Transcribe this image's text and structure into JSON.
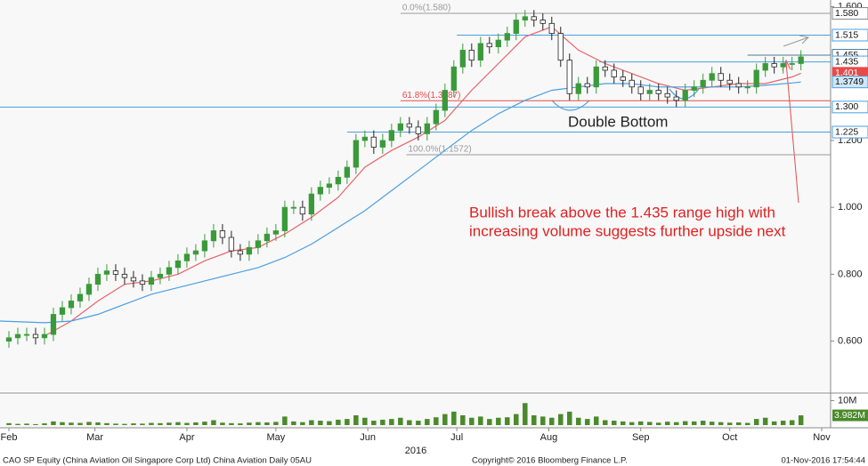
{
  "chart_data": {
    "type": "candlestick",
    "x": [
      0,
      3,
      6,
      9,
      12,
      15,
      18,
      21,
      24,
      27,
      30,
      33,
      36,
      39,
      42,
      45,
      48,
      51,
      54,
      57,
      60,
      63,
      66,
      69,
      72,
      75,
      78,
      81,
      84,
      87,
      90,
      93,
      96,
      99,
      102,
      105,
      108,
      111,
      114,
      117,
      120,
      123,
      126,
      129,
      132,
      135,
      138,
      141,
      144,
      147,
      150,
      153,
      156,
      159,
      162,
      165,
      168,
      171,
      174,
      177,
      180,
      183,
      186,
      189,
      192,
      195,
      198,
      201,
      204,
      207,
      210,
      213,
      216,
      219,
      222,
      225,
      228,
      231,
      234,
      237,
      240,
      243,
      246,
      249,
      252,
      255,
      258,
      261,
      264,
      267
    ],
    "open": [
      0.6,
      0.61,
      0.62,
      0.62,
      0.61,
      0.62,
      0.68,
      0.7,
      0.72,
      0.74,
      0.77,
      0.8,
      0.81,
      0.8,
      0.79,
      0.78,
      0.77,
      0.79,
      0.8,
      0.82,
      0.84,
      0.86,
      0.87,
      0.9,
      0.93,
      0.91,
      0.87,
      0.86,
      0.88,
      0.9,
      0.92,
      0.93,
      1.0,
      1.0,
      0.98,
      1.04,
      1.06,
      1.07,
      1.09,
      1.12,
      1.2,
      1.21,
      1.18,
      1.2,
      1.23,
      1.25,
      1.24,
      1.22,
      1.25,
      1.29,
      1.35,
      1.42,
      1.47,
      1.44,
      1.49,
      1.48,
      1.5,
      1.52,
      1.56,
      1.57,
      1.56,
      1.55,
      1.52,
      1.44,
      1.34,
      1.37,
      1.36,
      1.42,
      1.41,
      1.39,
      1.38,
      1.36,
      1.34,
      1.35,
      1.34,
      1.33,
      1.32,
      1.35,
      1.36,
      1.38,
      1.4,
      1.38,
      1.37,
      1.36,
      1.36,
      1.41,
      1.43,
      1.42,
      1.43,
      1.43
    ],
    "high": [
      0.63,
      0.64,
      0.64,
      0.64,
      0.64,
      0.7,
      0.72,
      0.74,
      0.76,
      0.79,
      0.82,
      0.83,
      0.83,
      0.82,
      0.81,
      0.8,
      0.81,
      0.82,
      0.84,
      0.86,
      0.88,
      0.89,
      0.92,
      0.95,
      0.95,
      0.93,
      0.89,
      0.9,
      0.92,
      0.94,
      0.95,
      1.02,
      1.02,
      1.02,
      1.06,
      1.08,
      1.09,
      1.11,
      1.14,
      1.22,
      1.23,
      1.23,
      1.22,
      1.25,
      1.27,
      1.27,
      1.26,
      1.27,
      1.31,
      1.37,
      1.44,
      1.49,
      1.49,
      1.51,
      1.51,
      1.52,
      1.54,
      1.58,
      1.59,
      1.59,
      1.58,
      1.57,
      1.54,
      1.46,
      1.39,
      1.39,
      1.44,
      1.44,
      1.43,
      1.41,
      1.4,
      1.38,
      1.37,
      1.37,
      1.36,
      1.35,
      1.37,
      1.38,
      1.4,
      1.42,
      1.42,
      1.4,
      1.39,
      1.38,
      1.43,
      1.45,
      1.45,
      1.45,
      1.45,
      1.47
    ],
    "low": [
      0.58,
      0.59,
      0.6,
      0.59,
      0.59,
      0.6,
      0.66,
      0.68,
      0.7,
      0.72,
      0.75,
      0.78,
      0.78,
      0.77,
      0.76,
      0.75,
      0.75,
      0.77,
      0.78,
      0.8,
      0.82,
      0.84,
      0.85,
      0.88,
      0.89,
      0.85,
      0.84,
      0.84,
      0.86,
      0.88,
      0.9,
      0.91,
      0.98,
      0.96,
      0.96,
      1.02,
      1.04,
      1.05,
      1.07,
      1.1,
      1.18,
      1.16,
      1.16,
      1.18,
      1.21,
      1.22,
      1.2,
      1.2,
      1.23,
      1.27,
      1.33,
      1.4,
      1.42,
      1.42,
      1.46,
      1.46,
      1.48,
      1.5,
      1.54,
      1.54,
      1.53,
      1.5,
      1.42,
      1.32,
      1.32,
      1.34,
      1.34,
      1.39,
      1.37,
      1.36,
      1.34,
      1.32,
      1.32,
      1.32,
      1.31,
      1.3,
      1.3,
      1.33,
      1.34,
      1.36,
      1.36,
      1.35,
      1.34,
      1.34,
      1.34,
      1.39,
      1.4,
      1.4,
      1.41,
      1.41
    ],
    "close": [
      0.61,
      0.62,
      0.62,
      0.61,
      0.62,
      0.68,
      0.7,
      0.72,
      0.74,
      0.77,
      0.8,
      0.81,
      0.8,
      0.79,
      0.78,
      0.77,
      0.79,
      0.8,
      0.82,
      0.84,
      0.86,
      0.87,
      0.9,
      0.93,
      0.91,
      0.87,
      0.86,
      0.88,
      0.9,
      0.92,
      0.93,
      1.0,
      1.0,
      0.98,
      1.04,
      1.06,
      1.07,
      1.09,
      1.12,
      1.2,
      1.21,
      1.18,
      1.2,
      1.23,
      1.25,
      1.24,
      1.22,
      1.25,
      1.29,
      1.35,
      1.42,
      1.47,
      1.44,
      1.49,
      1.48,
      1.5,
      1.52,
      1.56,
      1.57,
      1.56,
      1.55,
      1.52,
      1.44,
      1.34,
      1.37,
      1.36,
      1.42,
      1.41,
      1.39,
      1.38,
      1.36,
      1.34,
      1.35,
      1.34,
      1.33,
      1.32,
      1.35,
      1.36,
      1.38,
      1.4,
      1.38,
      1.37,
      1.36,
      1.36,
      1.41,
      1.43,
      1.42,
      1.43,
      1.43,
      1.45
    ],
    "volume": [
      0.8,
      0.5,
      0.6,
      0.4,
      0.7,
      1.5,
      1.2,
      1.0,
      0.9,
      1.3,
      1.1,
      0.8,
      0.6,
      0.5,
      0.7,
      0.6,
      0.9,
      0.8,
      1.0,
      1.2,
      0.9,
      1.1,
      1.4,
      2.0,
      1.0,
      0.8,
      0.7,
      1.0,
      1.2,
      1.1,
      1.3,
      3.5,
      1.5,
      1.2,
      2.0,
      1.8,
      1.6,
      2.2,
      2.5,
      4.0,
      3.0,
      1.8,
      2.2,
      2.5,
      3.0,
      2.0,
      1.8,
      2.5,
      3.2,
      4.5,
      5.5,
      4.0,
      3.0,
      3.5,
      2.5,
      3.0,
      3.2,
      4.5,
      9.0,
      4.0,
      3.5,
      3.0,
      4.5,
      5.5,
      3.0,
      2.5,
      3.5,
      2.0,
      1.8,
      1.5,
      1.2,
      1.5,
      1.3,
      1.0,
      1.4,
      1.2,
      1.6,
      1.5,
      1.8,
      1.4,
      1.2,
      1.0,
      1.1,
      0.9,
      2.5,
      3.0,
      1.5,
      1.8,
      2.0,
      3.982
    ],
    "up_color": "#3a9a3a",
    "down_color": "#222222",
    "volume_color": "#4a8a2a",
    "moving_averages": [
      {
        "color": "#e8636b",
        "x": [
          12,
          21,
          30,
          39,
          48,
          57,
          66,
          75,
          84,
          93,
          102,
          111,
          120,
          129,
          138,
          147,
          156,
          165,
          174,
          183,
          192,
          201,
          210,
          219,
          228,
          237,
          246,
          255,
          264,
          267
        ],
        "values": [
          0.615,
          0.66,
          0.72,
          0.77,
          0.78,
          0.8,
          0.84,
          0.87,
          0.88,
          0.92,
          0.97,
          1.03,
          1.12,
          1.17,
          1.21,
          1.26,
          1.35,
          1.43,
          1.51,
          1.54,
          1.47,
          1.43,
          1.4,
          1.37,
          1.35,
          1.36,
          1.37,
          1.37,
          1.39,
          1.401
        ]
      },
      {
        "color": "#4a9fe0",
        "x": [
          -3,
          12,
          21,
          30,
          39,
          48,
          57,
          66,
          75,
          84,
          93,
          102,
          111,
          120,
          129,
          138,
          147,
          156,
          165,
          174,
          183,
          192,
          201,
          210,
          219,
          228,
          237,
          246,
          255,
          264,
          267
        ],
        "values": [
          0.66,
          0.655,
          0.66,
          0.68,
          0.71,
          0.74,
          0.76,
          0.78,
          0.8,
          0.82,
          0.85,
          0.89,
          0.94,
          0.99,
          1.05,
          1.11,
          1.17,
          1.23,
          1.28,
          1.32,
          1.35,
          1.36,
          1.37,
          1.37,
          1.36,
          1.36,
          1.36,
          1.36,
          1.365,
          1.372,
          1.3749
        ]
      }
    ],
    "levels": [
      {
        "value": 1.58,
        "from": 132,
        "color": "#9a9a9a",
        "label": "0.0%(1.580)"
      },
      {
        "value": 1.515,
        "from": 151,
        "color": "#4a9fe0"
      },
      {
        "value": 1.455,
        "from": 249,
        "color": "#4a7a9a"
      },
      {
        "value": 1.435,
        "from": 199,
        "color": "#4a9fe0"
      },
      {
        "value": 1.3187,
        "from": 132,
        "color": "#e84a4a",
        "label": "61.8%(1.3187)"
      },
      {
        "value": 1.3,
        "from": -3,
        "color": "#4a9fe0"
      },
      {
        "value": 1.225,
        "from": 114,
        "color": "#4a9fe0"
      },
      {
        "value": 1.1572,
        "from": 134,
        "color": "#9a9a9a",
        "label": "100.0%(1.1572)"
      }
    ],
    "price_tags": [
      {
        "value": 1.58,
        "label": "1.580",
        "color": "#888888",
        "bg": "#ffffff"
      },
      {
        "value": 1.515,
        "label": "1.515",
        "color": "#4a9fe0",
        "bg": "#ffffff"
      },
      {
        "value": 1.455,
        "label": "1.455",
        "color": "#4a7a9a",
        "bg": "#ffffff"
      },
      {
        "value": 1.435,
        "label": "1.435",
        "color": "#4a9fe0",
        "bg": "#ffffff"
      },
      {
        "value": 1.401,
        "label": "1.401",
        "color": "#e84a4a",
        "bg": "#e84a4a"
      },
      {
        "value": 1.3749,
        "label": "1.3749",
        "color": "#4a9fe0",
        "bg": "#cfe6f7"
      },
      {
        "value": 1.3,
        "label": "1.300",
        "color": "#4a9fe0",
        "bg": "#ffffff"
      },
      {
        "value": 1.225,
        "label": "1.225",
        "color": "#4a9fe0",
        "bg": "#ffffff"
      }
    ],
    "ylim": [
      0.45,
      1.62
    ],
    "yticks": [
      {
        "value": 0.6,
        "label": "0.600"
      },
      {
        "value": 0.8,
        "label": "0.800"
      },
      {
        "value": 1.0,
        "label": "1.000"
      },
      {
        "value": 1.2,
        "label": "1.200"
      },
      {
        "value": 1.6,
        "label": "1.600"
      }
    ],
    "volume_ylim": [
      0,
      12
    ],
    "volume_yticks": [
      {
        "value": 10,
        "label": "10M"
      }
    ],
    "volume_tag": {
      "value": 3.982,
      "label": "3.982M"
    },
    "xlim": [
      -3,
      277
    ],
    "xticks": [
      {
        "value": 0,
        "label": "Feb"
      },
      {
        "value": 29,
        "label": "Mar"
      },
      {
        "value": 60,
        "label": "Apr"
      },
      {
        "value": 90,
        "label": "May"
      },
      {
        "value": 121,
        "label": "Jun"
      },
      {
        "value": 151,
        "label": "Jul"
      },
      {
        "value": 182,
        "label": "Aug"
      },
      {
        "value": 213,
        "label": "Sep"
      },
      {
        "value": 243,
        "label": "Oct"
      },
      {
        "value": 274,
        "label": "Nov"
      }
    ],
    "year_label": "2016",
    "pattern_label": "Double Bottom",
    "note": [
      "Bullish break above the 1.435 range high with",
      "increasing volume suggests further upside next"
    ],
    "footer": {
      "security": "CAO SP Equity (China Aviation Oil Singapore Corp Ltd) China Aviation  Daily 05AU",
      "copyright": "Copyright© 2016 Bloomberg Finance L.P.",
      "timestamp": "01-Nov-2016 17:54:44"
    }
  }
}
